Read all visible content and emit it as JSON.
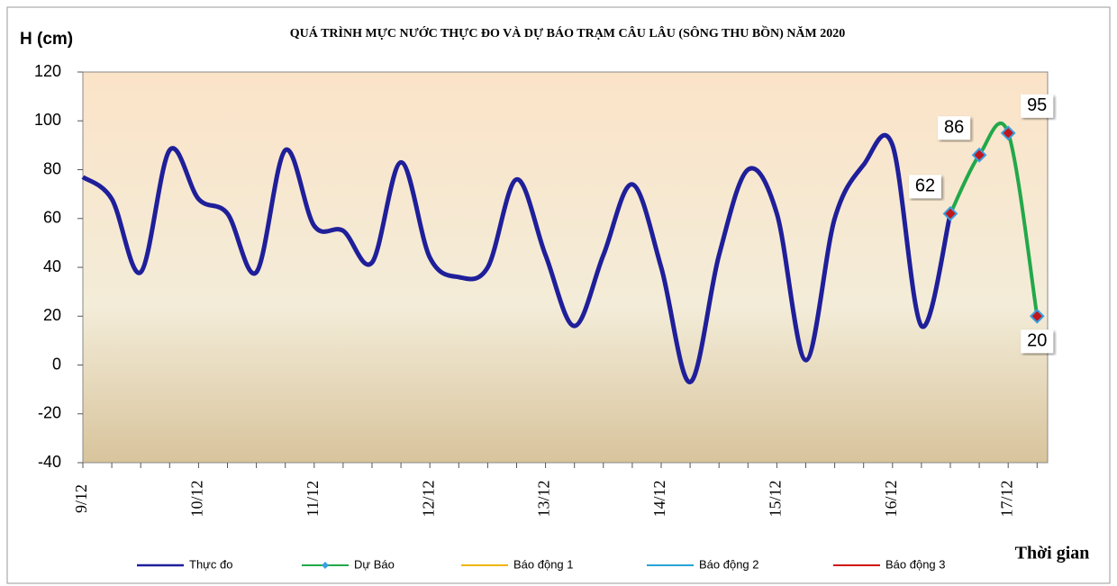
{
  "chart_data": {
    "type": "line",
    "title": "QUÁ TRÌNH MỰC NƯỚC THỰC ĐO VÀ DỰ BÁO TRẠM CÂU LÂU (SÔNG THU BỒN) NĂM 2020",
    "y_label": "H (cm)",
    "x_label": "Thời gian",
    "categories": [
      "9/12",
      null,
      null,
      null,
      "10/12",
      null,
      null,
      null,
      "11/12",
      null,
      null,
      null,
      "12/12",
      null,
      null,
      null,
      "13/12",
      null,
      null,
      null,
      "14/12",
      null,
      null,
      null,
      "15/12",
      null,
      null,
      null,
      "16/12",
      null,
      null,
      null,
      "17/12",
      null
    ],
    "series": [
      {
        "name": "Thực đo",
        "color": "#1f1f9a",
        "values": [
          77,
          68,
          38,
          88,
          68,
          62,
          38,
          88,
          57,
          55,
          42,
          83,
          44,
          36,
          40,
          76,
          45,
          16,
          45,
          74,
          40,
          -7,
          45,
          80,
          62,
          2,
          60,
          82,
          90,
          16,
          62,
          null,
          null,
          null
        ]
      },
      {
        "name": "Dự Báo",
        "color": "#22a84a",
        "values": [
          null,
          null,
          null,
          null,
          null,
          null,
          null,
          null,
          null,
          null,
          null,
          null,
          null,
          null,
          null,
          null,
          null,
          null,
          null,
          null,
          null,
          null,
          null,
          null,
          null,
          null,
          null,
          null,
          null,
          null,
          62,
          86,
          95,
          20
        ]
      },
      {
        "name": "Báo động 1",
        "color": "#f0b400",
        "values": [
          null,
          null,
          null,
          null,
          null,
          null,
          null,
          null,
          null,
          null,
          null,
          null,
          null,
          null,
          null,
          null,
          null,
          null,
          null,
          null,
          null,
          null,
          null,
          null,
          null,
          null,
          null,
          null,
          null,
          null,
          null,
          null,
          null,
          null
        ]
      },
      {
        "name": "Báo động 2",
        "color": "#29a3d6",
        "values": [
          null,
          null,
          null,
          null,
          null,
          null,
          null,
          null,
          null,
          null,
          null,
          null,
          null,
          null,
          null,
          null,
          null,
          null,
          null,
          null,
          null,
          null,
          null,
          null,
          null,
          null,
          null,
          null,
          null,
          null,
          null,
          null,
          null,
          null
        ]
      },
      {
        "name": "Báo động 3",
        "color": "#d01818",
        "values": [
          null,
          null,
          null,
          null,
          null,
          null,
          null,
          null,
          null,
          null,
          null,
          null,
          null,
          null,
          null,
          null,
          null,
          null,
          null,
          null,
          null,
          null,
          null,
          null,
          null,
          null,
          null,
          null,
          null,
          null,
          null,
          null,
          null,
          null
        ]
      }
    ],
    "ylim": [
      -40,
      120
    ],
    "yticks": [
      -40,
      -20,
      0,
      20,
      40,
      60,
      80,
      100,
      120
    ]
  }
}
